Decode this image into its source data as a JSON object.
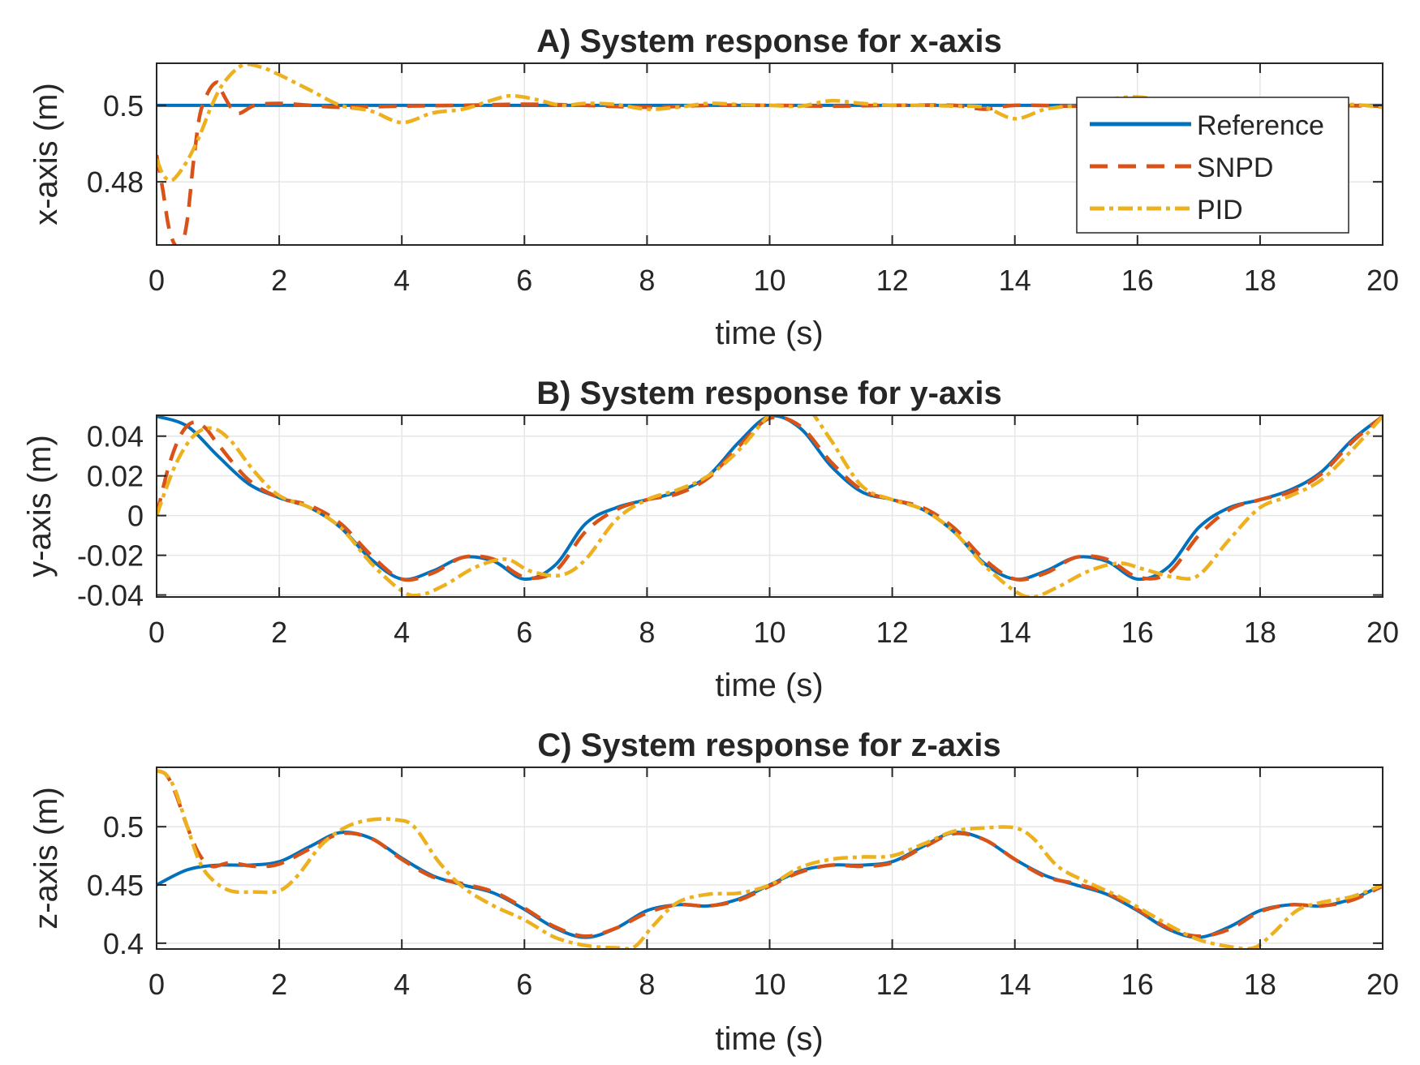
{
  "colors": {
    "reference": "#0072BD",
    "snpd": "#D95319",
    "pid": "#EDB120",
    "grid": "#e6e6e6",
    "axis": "#262626"
  },
  "legend": {
    "entries": [
      "Reference",
      "SNPD",
      "PID"
    ],
    "placement": "top-right"
  },
  "chart_data": [
    {
      "type": "line",
      "title": "A) System response for x-axis",
      "xlabel": "time (s)",
      "ylabel": "x-axis (m)",
      "xlim": [
        0,
        20
      ],
      "ylim": [
        0.4635,
        0.511
      ],
      "xticks": [
        0,
        2,
        4,
        6,
        8,
        10,
        12,
        14,
        16,
        18,
        20
      ],
      "xtick_labels": [
        "0",
        "2",
        "4",
        "6",
        "8",
        "10",
        "12",
        "14",
        "16",
        "18",
        "20"
      ],
      "yticks": [
        0.48,
        0.5
      ],
      "ytick_labels": [
        "0.48",
        "0.5"
      ],
      "grid": true,
      "series": [
        {
          "name": "Reference",
          "x": [
            0,
            20
          ],
          "y": [
            0.5,
            0.5
          ]
        },
        {
          "name": "SNPD",
          "x": [
            0,
            0.1,
            0.2,
            0.3,
            0.4,
            0.5,
            0.6,
            0.7,
            0.8,
            0.9,
            1.0,
            1.05,
            1.3,
            1.6,
            2.0,
            2.5,
            3.0,
            4.0,
            5.0,
            6.0,
            7.0,
            8.0,
            9.0,
            10.0,
            11.0,
            12.0,
            13.0,
            13.5,
            14.0,
            15.0,
            16.0,
            17.0,
            18.0,
            19.0,
            20.0
          ],
          "y": [
            0.487,
            0.478,
            0.468,
            0.4635,
            0.463,
            0.47,
            0.485,
            0.497,
            0.502,
            0.505,
            0.506,
            0.504,
            0.498,
            0.5,
            0.5005,
            0.5,
            0.4995,
            0.4998,
            0.5,
            0.5003,
            0.5,
            0.4995,
            0.5,
            0.5,
            0.4998,
            0.5,
            0.5,
            0.499,
            0.5,
            0.4998,
            0.5,
            0.4998,
            0.5,
            0.5,
            0.4998
          ]
        },
        {
          "name": "PID",
          "x": [
            0,
            0.1,
            0.2,
            0.3,
            0.5,
            0.7,
            0.9,
            1.1,
            1.4,
            1.7,
            2.0,
            2.5,
            3.0,
            3.5,
            4.0,
            4.5,
            5.0,
            5.5,
            5.8,
            6.2,
            6.6,
            7.0,
            7.5,
            8.0,
            8.5,
            9.0,
            9.5,
            10.0,
            10.5,
            11.0,
            11.5,
            12.0,
            12.5,
            13.0,
            13.5,
            14.0,
            14.5,
            15.0,
            15.5,
            16.0,
            16.5,
            17.0,
            17.5,
            18.0,
            18.5,
            19.0,
            19.5,
            20.0
          ],
          "y": [
            0.486,
            0.482,
            0.4805,
            0.481,
            0.4855,
            0.492,
            0.5,
            0.506,
            0.5105,
            0.51,
            0.508,
            0.504,
            0.5,
            0.4985,
            0.4955,
            0.498,
            0.499,
            0.5015,
            0.5025,
            0.5015,
            0.5,
            0.5005,
            0.5002,
            0.499,
            0.4995,
            0.5005,
            0.5002,
            0.5,
            0.4998,
            0.5012,
            0.5005,
            0.5,
            0.5,
            0.4998,
            0.4995,
            0.4965,
            0.499,
            0.5,
            0.5015,
            0.5022,
            0.501,
            0.5,
            0.5005,
            0.5,
            0.4998,
            0.5,
            0.5002,
            0.4995
          ]
        }
      ]
    },
    {
      "type": "line",
      "title": "B) System response for y-axis",
      "xlabel": "time (s)",
      "ylabel": "y-axis (m)",
      "xlim": [
        0,
        20
      ],
      "ylim": [
        -0.041,
        0.0505
      ],
      "xticks": [
        0,
        2,
        4,
        6,
        8,
        10,
        12,
        14,
        16,
        18,
        20
      ],
      "xtick_labels": [
        "0",
        "2",
        "4",
        "6",
        "8",
        "10",
        "12",
        "14",
        "16",
        "18",
        "20"
      ],
      "yticks": [
        -0.04,
        -0.02,
        0,
        0.02,
        0.04
      ],
      "ytick_labels": [
        "-0.04",
        "-0.02",
        "0",
        "0.02",
        "0.04"
      ],
      "grid": true,
      "series": [
        {
          "name": "Reference",
          "x": [
            0,
            0.5,
            1,
            1.5,
            2,
            2.5,
            3,
            3.5,
            4,
            4.5,
            5,
            5.5,
            6,
            6.5,
            7,
            7.5,
            8,
            8.5,
            9,
            9.5,
            10,
            10.5,
            11,
            11.5,
            12,
            12.5,
            13,
            13.5,
            14,
            14.5,
            15,
            15.5,
            16,
            16.5,
            17,
            17.5,
            18,
            18.5,
            19,
            19.5,
            20
          ],
          "y": [
            0.05,
            0.045,
            0.03,
            0.016,
            0.009,
            0.004,
            -0.006,
            -0.022,
            -0.032,
            -0.028,
            -0.021,
            -0.023,
            -0.032,
            -0.025,
            -0.004,
            0.004,
            0.008,
            0.012,
            0.02,
            0.037,
            0.05,
            0.044,
            0.025,
            0.012,
            0.008,
            0.003,
            -0.008,
            -0.024,
            -0.032,
            -0.028,
            -0.021,
            -0.023,
            -0.032,
            -0.026,
            -0.006,
            0.004,
            0.008,
            0.013,
            0.022,
            0.038,
            0.05
          ]
        },
        {
          "name": "SNPD",
          "x": [
            0,
            0.2,
            0.4,
            0.6,
            0.8,
            1,
            1.5,
            2,
            2.5,
            3,
            3.5,
            4,
            4.5,
            5,
            5.5,
            6,
            6.5,
            7,
            7.5,
            8,
            8.5,
            9,
            9.5,
            10,
            10.5,
            11,
            11.5,
            12,
            12.5,
            13,
            13.5,
            14,
            14.5,
            15,
            15.5,
            16,
            16.5,
            17,
            17.5,
            18,
            18.5,
            19,
            19.5,
            20
          ],
          "y": [
            0.0,
            0.025,
            0.041,
            0.047,
            0.044,
            0.036,
            0.018,
            0.009,
            0.005,
            -0.004,
            -0.02,
            -0.032,
            -0.029,
            -0.021,
            -0.022,
            -0.031,
            -0.028,
            -0.008,
            0.003,
            0.008,
            0.011,
            0.019,
            0.035,
            0.049,
            0.045,
            0.027,
            0.013,
            0.008,
            0.004,
            -0.006,
            -0.022,
            -0.032,
            -0.029,
            -0.021,
            -0.022,
            -0.031,
            -0.029,
            -0.01,
            0.003,
            0.008,
            0.012,
            0.021,
            0.037,
            0.05
          ]
        },
        {
          "name": "PID",
          "x": [
            0,
            0.3,
            0.6,
            0.9,
            1.2,
            1.6,
            2,
            2.5,
            3,
            3.5,
            4,
            4.3,
            4.7,
            5.2,
            5.7,
            6.1,
            6.6,
            7,
            7.5,
            8,
            8.5,
            9,
            9.5,
            10,
            10.3,
            10.6,
            11,
            11.5,
            12,
            12.5,
            13,
            13.5,
            14,
            14.3,
            14.7,
            15.2,
            15.7,
            16.1,
            16.6,
            17,
            17.5,
            18,
            18.5,
            19,
            19.5,
            20
          ],
          "y": [
            0.0,
            0.025,
            0.04,
            0.044,
            0.038,
            0.022,
            0.01,
            0.004,
            -0.006,
            -0.024,
            -0.038,
            -0.04,
            -0.035,
            -0.026,
            -0.022,
            -0.028,
            -0.03,
            -0.022,
            -0.002,
            0.008,
            0.013,
            0.02,
            0.033,
            0.051,
            0.057,
            0.055,
            0.038,
            0.015,
            0.008,
            0.003,
            -0.008,
            -0.025,
            -0.038,
            -0.041,
            -0.036,
            -0.028,
            -0.024,
            -0.027,
            -0.031,
            -0.03,
            -0.012,
            0.004,
            0.01,
            0.018,
            0.033,
            0.05
          ]
        }
      ]
    },
    {
      "type": "line",
      "title": "C) System response for z-axis",
      "xlabel": "time (s)",
      "ylabel": "z-axis (m)",
      "xlim": [
        0,
        20
      ],
      "ylim": [
        0.395,
        0.551
      ],
      "xticks": [
        0,
        2,
        4,
        6,
        8,
        10,
        12,
        14,
        16,
        18,
        20
      ],
      "xtick_labels": [
        "0",
        "2",
        "4",
        "6",
        "8",
        "10",
        "12",
        "14",
        "16",
        "18",
        "20"
      ],
      "yticks": [
        0.4,
        0.45,
        0.5
      ],
      "ytick_labels": [
        "0.4",
        "0.45",
        "0.5"
      ],
      "grid": true,
      "series": [
        {
          "name": "Reference",
          "x": [
            0,
            0.5,
            1,
            1.5,
            2,
            2.5,
            3,
            3.5,
            4,
            4.5,
            5,
            5.5,
            6,
            6.5,
            7,
            7.5,
            8,
            8.5,
            9,
            9.5,
            10,
            10.5,
            11,
            11.5,
            12,
            12.5,
            13,
            13.5,
            14,
            14.5,
            15,
            15.5,
            16,
            16.5,
            17,
            17.5,
            18,
            18.5,
            19,
            19.5,
            20
          ],
          "y": [
            0.45,
            0.463,
            0.467,
            0.467,
            0.47,
            0.483,
            0.495,
            0.49,
            0.473,
            0.458,
            0.45,
            0.443,
            0.429,
            0.413,
            0.405,
            0.413,
            0.428,
            0.433,
            0.432,
            0.438,
            0.45,
            0.462,
            0.467,
            0.467,
            0.47,
            0.483,
            0.495,
            0.489,
            0.472,
            0.458,
            0.45,
            0.442,
            0.428,
            0.412,
            0.405,
            0.414,
            0.428,
            0.433,
            0.432,
            0.438,
            0.45
          ]
        },
        {
          "name": "SNPD",
          "x": [
            0,
            0.15,
            0.3,
            0.5,
            0.7,
            0.9,
            1.2,
            1.6,
            2,
            2.5,
            3,
            3.5,
            4,
            4.5,
            5,
            5.5,
            6,
            6.5,
            7,
            7.5,
            8,
            8.5,
            9,
            9.5,
            10,
            10.5,
            11,
            11.5,
            12,
            12.5,
            13,
            13.5,
            14,
            14.5,
            15,
            15.5,
            16,
            16.5,
            17,
            17.5,
            18,
            18.5,
            19,
            19.5,
            20
          ],
          "y": [
            0.548,
            0.545,
            0.53,
            0.5,
            0.476,
            0.466,
            0.469,
            0.466,
            0.468,
            0.481,
            0.494,
            0.49,
            0.472,
            0.457,
            0.451,
            0.444,
            0.43,
            0.414,
            0.406,
            0.413,
            0.426,
            0.433,
            0.432,
            0.437,
            0.449,
            0.461,
            0.467,
            0.466,
            0.469,
            0.482,
            0.494,
            0.489,
            0.472,
            0.457,
            0.451,
            0.443,
            0.429,
            0.413,
            0.406,
            0.412,
            0.427,
            0.433,
            0.432,
            0.437,
            0.449
          ]
        },
        {
          "name": "PID",
          "x": [
            0,
            0.15,
            0.3,
            0.5,
            0.7,
            0.9,
            1.2,
            1.6,
            2,
            2.3,
            2.7,
            3.1,
            3.5,
            3.9,
            4.2,
            4.6,
            5,
            5.5,
            6,
            6.5,
            7,
            7.5,
            7.8,
            8.1,
            8.5,
            9,
            9.5,
            10,
            10.5,
            11,
            11.5,
            12,
            12.5,
            13,
            13.5,
            14,
            14.3,
            14.7,
            15.2,
            15.7,
            16.2,
            16.6,
            17,
            17.5,
            17.9,
            18.2,
            18.6,
            19,
            19.5,
            20
          ],
          "y": [
            0.548,
            0.545,
            0.532,
            0.5,
            0.47,
            0.455,
            0.445,
            0.444,
            0.445,
            0.458,
            0.485,
            0.5,
            0.506,
            0.506,
            0.5,
            0.47,
            0.448,
            0.432,
            0.42,
            0.405,
            0.398,
            0.396,
            0.397,
            0.415,
            0.435,
            0.442,
            0.443,
            0.45,
            0.465,
            0.472,
            0.474,
            0.475,
            0.485,
            0.496,
            0.499,
            0.499,
            0.49,
            0.466,
            0.452,
            0.44,
            0.425,
            0.413,
            0.403,
            0.397,
            0.396,
            0.408,
            0.428,
            0.435,
            0.44,
            0.45
          ]
        }
      ]
    }
  ]
}
